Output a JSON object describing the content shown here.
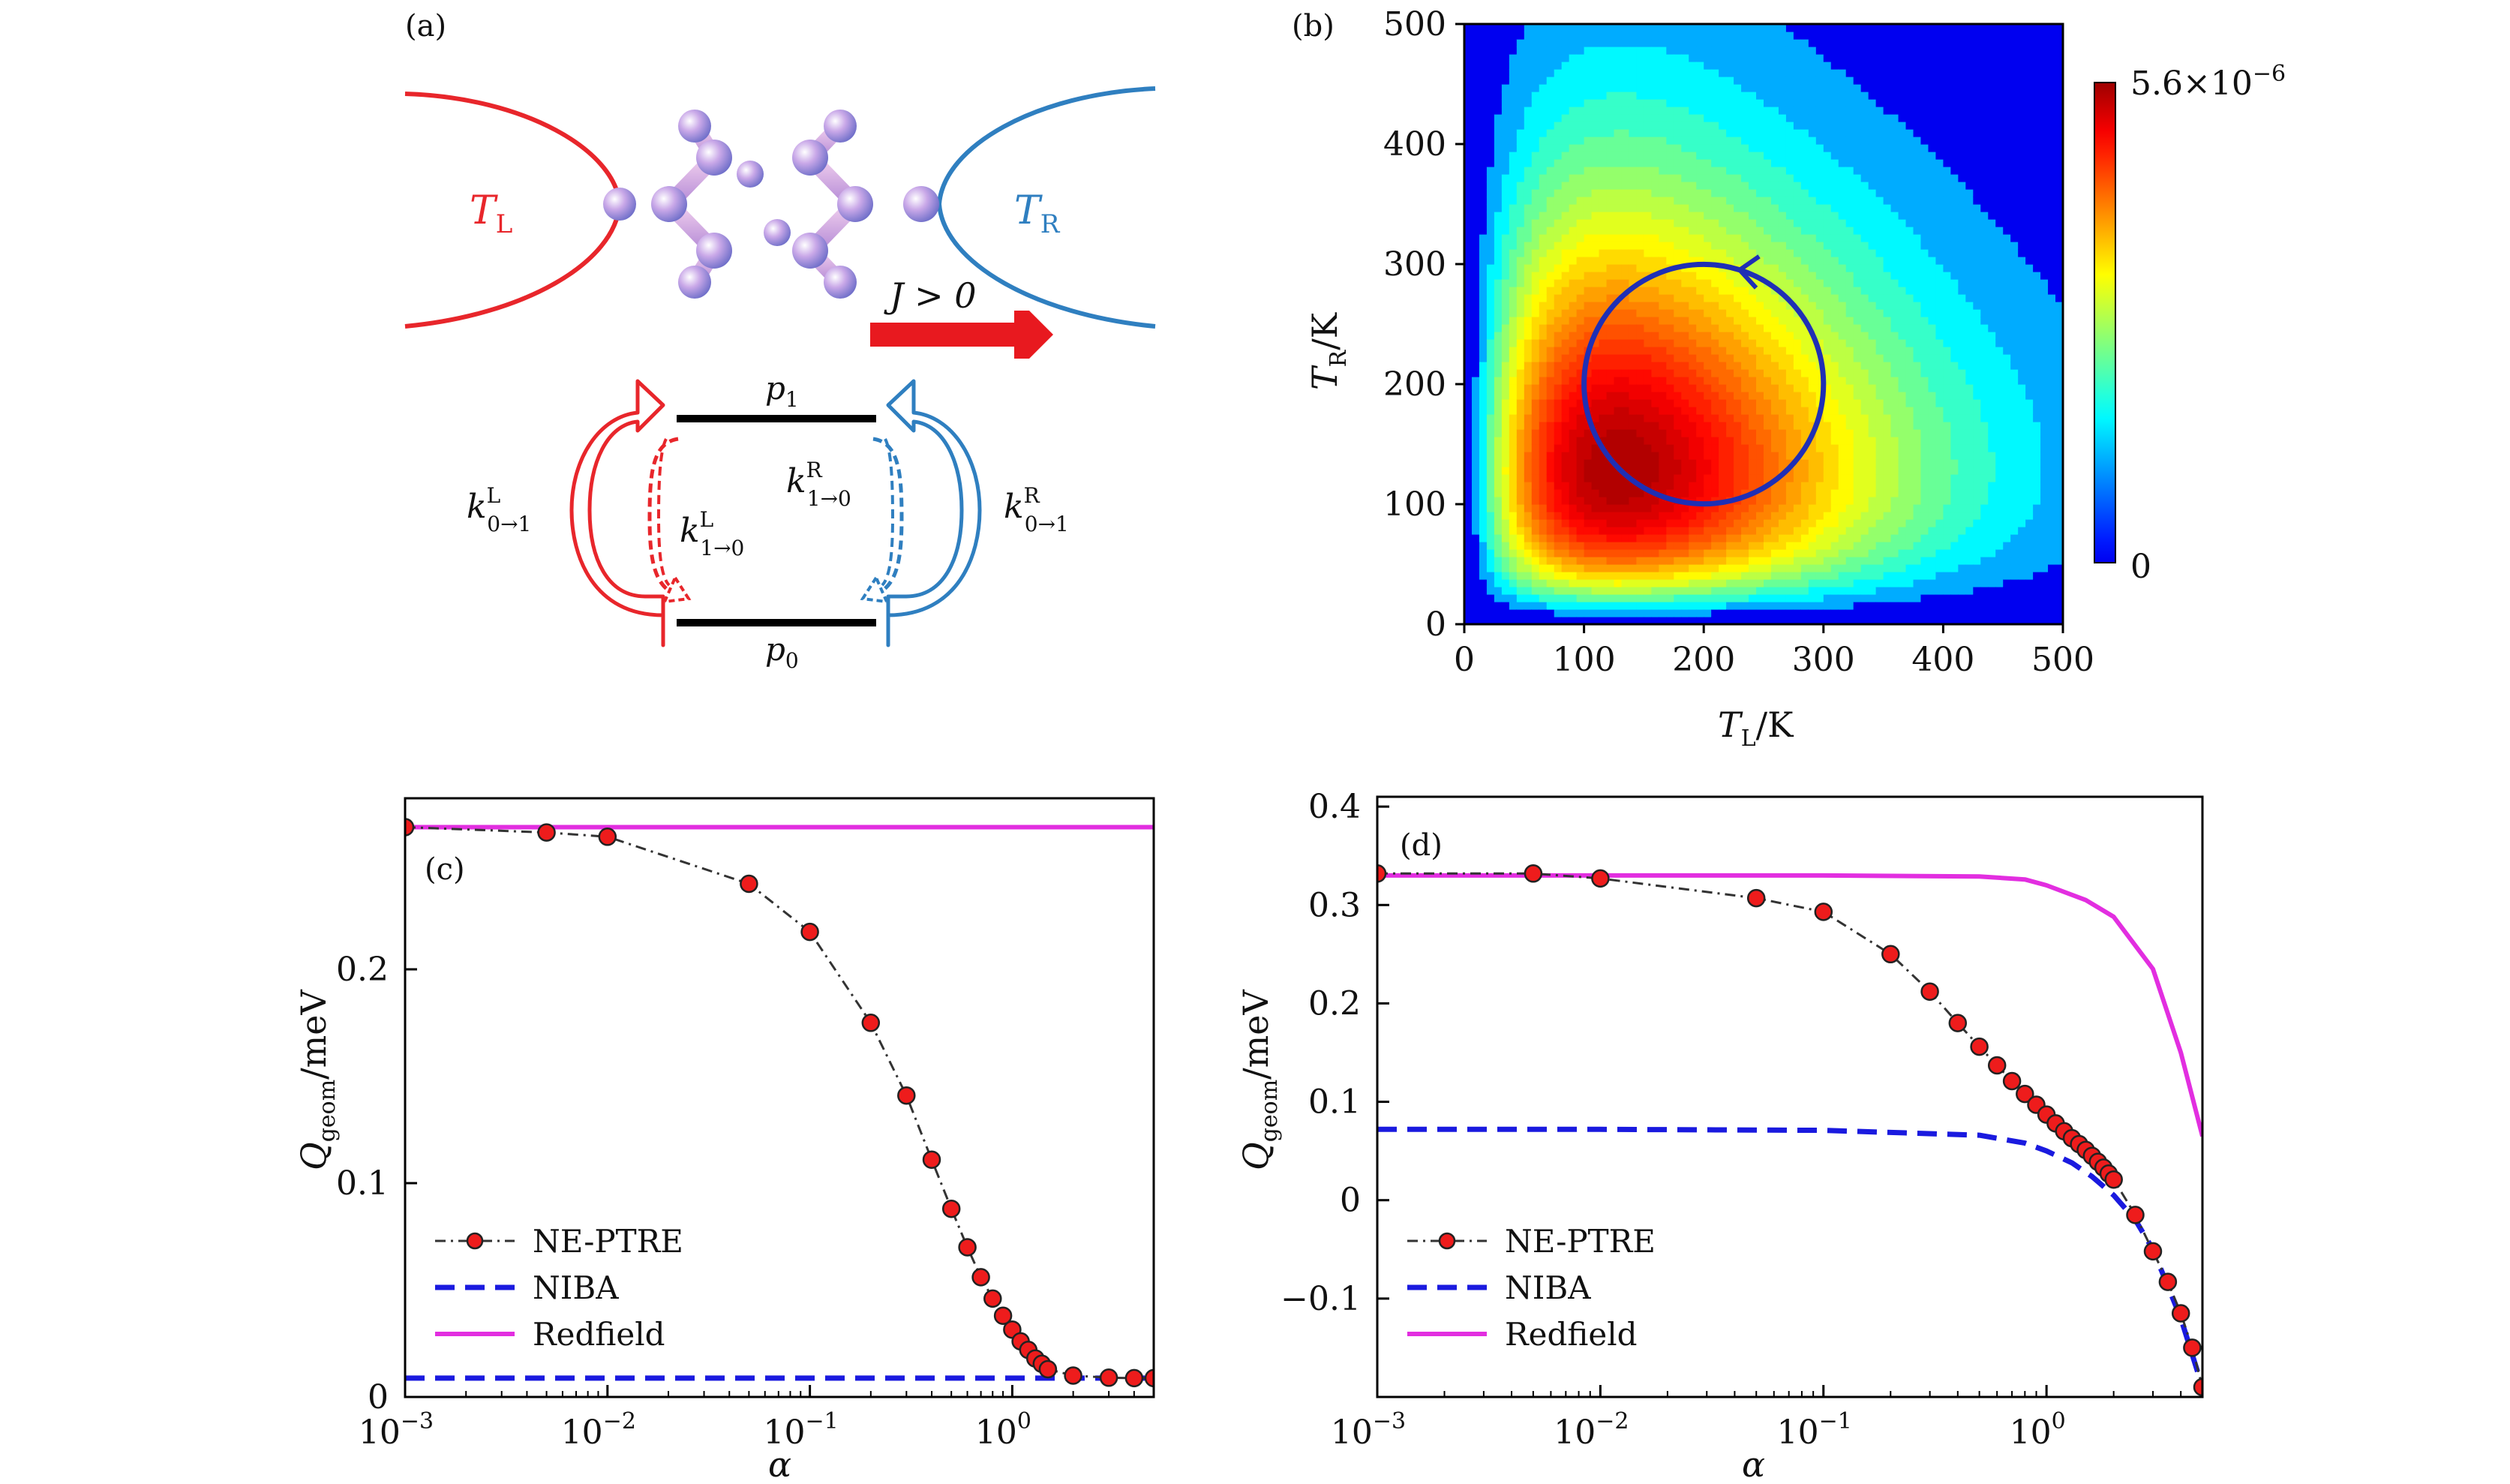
{
  "panel_a": {
    "label": "(a)",
    "left_lead": "T",
    "left_lead_sub": "L",
    "right_lead": "T",
    "right_lead_sub": "R",
    "current": "J > 0",
    "upper_level": "p",
    "upper_level_sub": "1",
    "lower_level": "p",
    "lower_level_sub": "0",
    "k_left_up": "k",
    "k_left_up_sup": "L",
    "k_left_up_sub": "0→1",
    "k_left_down": "k",
    "k_left_down_sup": "L",
    "k_left_down_sub": "1→0",
    "k_right_down": "k",
    "k_right_down_sup": "R",
    "k_right_down_sub": "1→0",
    "k_right_up": "k",
    "k_right_up_sup": "R",
    "k_right_up_sub": "0→1",
    "colors": {
      "left": "#e8262b",
      "right": "#2f7fc0"
    }
  },
  "chart_data": [
    {
      "id": "b",
      "type": "heatmap",
      "panel_label": "(b)",
      "xlabel": "T",
      "xlabel_sub": "L",
      "xlabel_unit": "/K",
      "ylabel": "T",
      "ylabel_sub": "R",
      "ylabel_unit": "/K",
      "xlim": [
        0,
        500
      ],
      "ylim": [
        0,
        500
      ],
      "xticks": [
        "0",
        "100",
        "200",
        "300",
        "400",
        "500"
      ],
      "yticks": [
        "0",
        "100",
        "200",
        "300",
        "400",
        "500"
      ],
      "colorbar_max_label": "5.6×10",
      "colorbar_max_exp": "−6",
      "colorbar_min_label": "0",
      "peak": {
        "x": 130,
        "y": 130,
        "value": 5.6e-06
      },
      "cycle": {
        "center_x": 200,
        "center_y": 200,
        "radius": 100,
        "direction": "counterclockwise"
      }
    },
    {
      "id": "c",
      "type": "line",
      "panel_label": "(c)",
      "xlabel": "α",
      "ylabel": "Q",
      "ylabel_sub": "geom",
      "ylabel_unit": "/meV",
      "xscale": "log",
      "xlim": [
        0.001,
        5
      ],
      "ylim": [
        0,
        0.28
      ],
      "xticks": [
        {
          "value": 0.001,
          "base": "10",
          "exp": "−3"
        },
        {
          "value": 0.01,
          "base": "10",
          "exp": "−2"
        },
        {
          "value": 0.1,
          "base": "10",
          "exp": "−1"
        },
        {
          "value": 1,
          "base": "10",
          "exp": "0"
        }
      ],
      "yticks": [
        {
          "value": 0,
          "label": "0"
        },
        {
          "value": 0.1,
          "label": "0.1"
        },
        {
          "value": 0.2,
          "label": "0.2"
        }
      ],
      "legend_position": "lower-left",
      "series": [
        {
          "name": "NE-PTRE",
          "style": "dashdot-markers",
          "x": [
            0.001,
            0.005,
            0.01,
            0.05,
            0.1,
            0.2,
            0.3,
            0.4,
            0.5,
            0.6,
            0.7,
            0.8,
            0.9,
            1.0,
            1.1,
            1.2,
            1.3,
            1.4,
            1.5,
            2.0,
            3.0,
            4.0,
            5.0
          ],
          "y": [
            0.2665,
            0.264,
            0.262,
            0.24,
            0.2175,
            0.175,
            0.141,
            0.111,
            0.088,
            0.07,
            0.056,
            0.046,
            0.038,
            0.0315,
            0.026,
            0.022,
            0.018,
            0.0155,
            0.013,
            0.01,
            0.009,
            0.0088,
            0.0088
          ]
        },
        {
          "name": "NIBA",
          "style": "dashed",
          "x": [
            0.001,
            5.0
          ],
          "y": [
            0.0088,
            0.0088
          ]
        },
        {
          "name": "Redfield",
          "style": "solid",
          "x": [
            0.001,
            5.0
          ],
          "y": [
            0.2665,
            0.2665
          ]
        }
      ]
    },
    {
      "id": "d",
      "type": "line",
      "panel_label": "(d)",
      "xlabel": "α",
      "ylabel": "Q",
      "ylabel_sub": "geom",
      "ylabel_unit": "/meV",
      "xscale": "log",
      "xlim": [
        0.001,
        5
      ],
      "ylim": [
        -0.2,
        0.41
      ],
      "xticks": [
        {
          "value": 0.001,
          "base": "10",
          "exp": "−3"
        },
        {
          "value": 0.01,
          "base": "10",
          "exp": "−2"
        },
        {
          "value": 0.1,
          "base": "10",
          "exp": "−1"
        },
        {
          "value": 1,
          "base": "10",
          "exp": "0"
        }
      ],
      "yticks": [
        {
          "value": -0.1,
          "label": "−0.1"
        },
        {
          "value": 0,
          "label": "0"
        },
        {
          "value": 0.1,
          "label": "0.1"
        },
        {
          "value": 0.2,
          "label": "0.2"
        },
        {
          "value": 0.3,
          "label": "0.3"
        },
        {
          "value": 0.4,
          "label": "0.4"
        }
      ],
      "legend_position": "lower-left",
      "series": [
        {
          "name": "NE-PTRE",
          "style": "dashdot-markers",
          "x": [
            0.001,
            0.005,
            0.01,
            0.05,
            0.1,
            0.2,
            0.3,
            0.4,
            0.5,
            0.6,
            0.7,
            0.8,
            0.9,
            1.0,
            1.1,
            1.2,
            1.3,
            1.4,
            1.5,
            1.6,
            1.7,
            1.8,
            1.9,
            2.0,
            2.5,
            3.0,
            3.5,
            4.0,
            4.5,
            5.0
          ],
          "y": [
            0.332,
            0.332,
            0.327,
            0.307,
            0.293,
            0.25,
            0.212,
            0.18,
            0.156,
            0.137,
            0.121,
            0.108,
            0.097,
            0.087,
            0.078,
            0.07,
            0.063,
            0.057,
            0.051,
            0.045,
            0.039,
            0.033,
            0.027,
            0.021,
            -0.015,
            -0.052,
            -0.083,
            -0.115,
            -0.15,
            -0.19
          ]
        },
        {
          "name": "NIBA",
          "style": "dashed",
          "x": [
            0.001,
            0.01,
            0.1,
            0.5,
            0.8,
            1.0,
            1.3,
            1.6,
            2.0,
            2.5,
            3.0,
            4.0,
            5.0
          ],
          "y": [
            0.072,
            0.072,
            0.071,
            0.066,
            0.058,
            0.05,
            0.038,
            0.024,
            0.005,
            -0.02,
            -0.05,
            -0.12,
            -0.19
          ]
        },
        {
          "name": "Redfield",
          "style": "solid",
          "x": [
            0.001,
            0.01,
            0.1,
            0.5,
            0.8,
            1.0,
            1.5,
            2.0,
            3.0,
            4.0,
            5.0
          ],
          "y": [
            0.33,
            0.33,
            0.33,
            0.329,
            0.326,
            0.32,
            0.305,
            0.288,
            0.235,
            0.15,
            0.065
          ]
        }
      ]
    }
  ]
}
